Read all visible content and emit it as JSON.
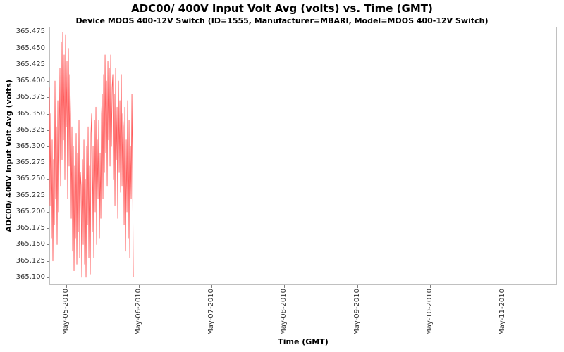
{
  "chart_data": {
    "type": "line",
    "title": "ADC00/ 400V Input Volt Avg (volts) vs. Time (GMT)",
    "subtitle": "Device MOOS 400-12V Switch (ID=1555, Manufacturer=MBARI, Model=MOOS 400-12V Switch)",
    "xlabel": "Time (GMT)",
    "ylabel": "ADC00/ 400V Input Volt Avg (volts)",
    "grid": false,
    "legend": "none",
    "plot_background": "#ffffff",
    "border_color": "#c0c0c0",
    "tick_color": "#808080",
    "x_tick_labels": [
      "May-05-2010",
      "May-06-2010",
      "May-07-2010",
      "May-08-2010",
      "May-09-2010",
      "May-10-2010",
      "May-11-2010"
    ],
    "x_tick_positions_days": [
      0,
      1,
      2,
      3,
      4,
      5,
      6
    ],
    "x_domain_days": [
      -0.233,
      6.747
    ],
    "x_tick_rotation": -90,
    "ylim": [
      365.088,
      365.483
    ],
    "y_ticks": [
      365.1,
      365.125,
      365.15,
      365.175,
      365.2,
      365.225,
      365.25,
      365.275,
      365.3,
      365.325,
      365.35,
      365.375,
      365.4,
      365.425,
      365.45,
      365.475
    ],
    "series": [
      {
        "name": "ADC00/ 400V Input Volt Avg",
        "color": "#ff5f5f",
        "t_start_days": -0.233,
        "t_step_days": 0.0097,
        "values": [
          365.39,
          365.21,
          365.35,
          365.16,
          365.31,
          365.125,
          365.28,
          365.18,
          365.4,
          365.22,
          365.33,
          365.15,
          365.37,
          365.2,
          365.3,
          365.42,
          365.24,
          365.46,
          365.28,
          365.475,
          365.31,
          365.44,
          365.25,
          365.47,
          365.33,
          365.43,
          365.22,
          365.45,
          365.27,
          365.41,
          365.35,
          365.19,
          365.33,
          365.14,
          365.3,
          365.11,
          365.27,
          365.16,
          365.32,
          365.12,
          365.29,
          365.17,
          365.34,
          365.13,
          365.26,
          365.24,
          365.1,
          365.28,
          365.15,
          365.31,
          365.12,
          365.25,
          365.1,
          365.3,
          365.18,
          365.33,
          365.13,
          365.27,
          365.105,
          365.32,
          365.35,
          365.17,
          365.3,
          365.13,
          365.34,
          365.2,
          365.36,
          365.15,
          365.31,
          365.22,
          365.34,
          365.16,
          365.29,
          365.19,
          365.35,
          365.38,
          365.22,
          365.41,
          365.26,
          365.44,
          365.29,
          365.4,
          365.24,
          365.43,
          365.31,
          365.42,
          365.27,
          365.44,
          365.3,
          365.39,
          365.41,
          365.25,
          365.38,
          365.21,
          365.42,
          365.28,
          365.36,
          365.19,
          365.4,
          365.26,
          365.37,
          365.23,
          365.41,
          365.24,
          365.35,
          365.33,
          365.18,
          365.36,
          365.14,
          365.31,
          365.2,
          365.37,
          365.16,
          365.34,
          365.13,
          365.3,
          365.22,
          365.38,
          365.26,
          365.1
        ]
      }
    ]
  }
}
